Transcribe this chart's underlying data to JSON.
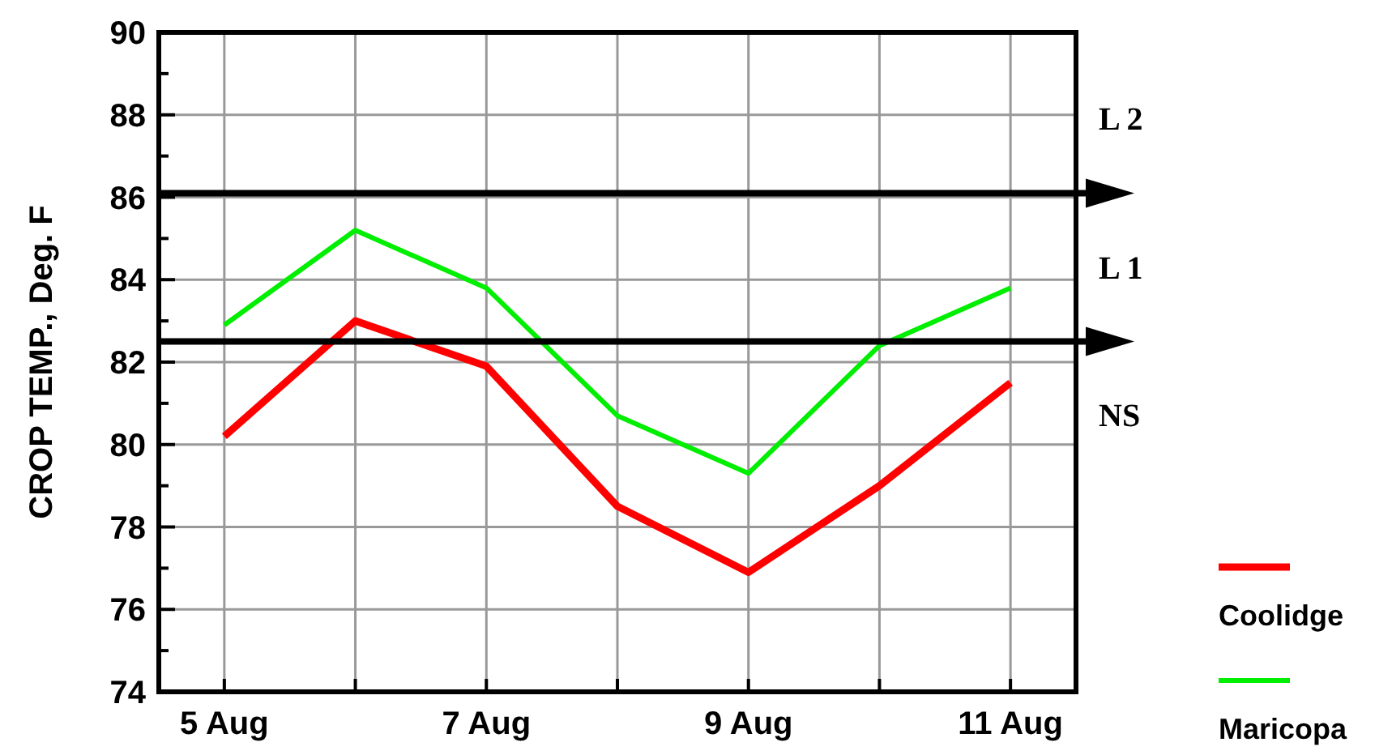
{
  "chart_data": {
    "type": "line",
    "ylabel": "CROP TEMP., Deg. F",
    "categories": [
      "5 Aug",
      null,
      "7 Aug",
      null,
      "9 Aug",
      null,
      "11 Aug"
    ],
    "series": [
      {
        "name": "Coolidge",
        "color": "#ff0000",
        "values": [
          80.2,
          83.0,
          81.9,
          78.5,
          76.9,
          79.0,
          81.5
        ]
      },
      {
        "name": "Maricopa",
        "color": "#00ee00",
        "values": [
          82.9,
          85.2,
          83.8,
          80.7,
          79.3,
          82.4,
          83.8
        ]
      }
    ],
    "ylim": [
      74,
      90
    ],
    "yticks": [
      74,
      {
        "value": 75,
        "label": null
      },
      76,
      {
        "value": 77,
        "label": null
      },
      78,
      {
        "value": 79,
        "label": null
      },
      80,
      {
        "value": 81,
        "label": null
      },
      82,
      {
        "value": 83,
        "label": null
      },
      84,
      {
        "value": 85,
        "label": null
      },
      86,
      {
        "value": 87,
        "label": null
      },
      88,
      {
        "value": 89,
        "label": null
      },
      90
    ],
    "grid": true,
    "legend": "bottom right",
    "marker": "none",
    "line_style": "solid",
    "ref_lines": [
      {
        "axis": "y",
        "value": 86.1,
        "color": "#000000"
      },
      {
        "axis": "y",
        "value": 82.5,
        "color": "#000000"
      }
    ],
    "annotations": [
      "L 2",
      "L 1",
      "NS"
    ]
  }
}
